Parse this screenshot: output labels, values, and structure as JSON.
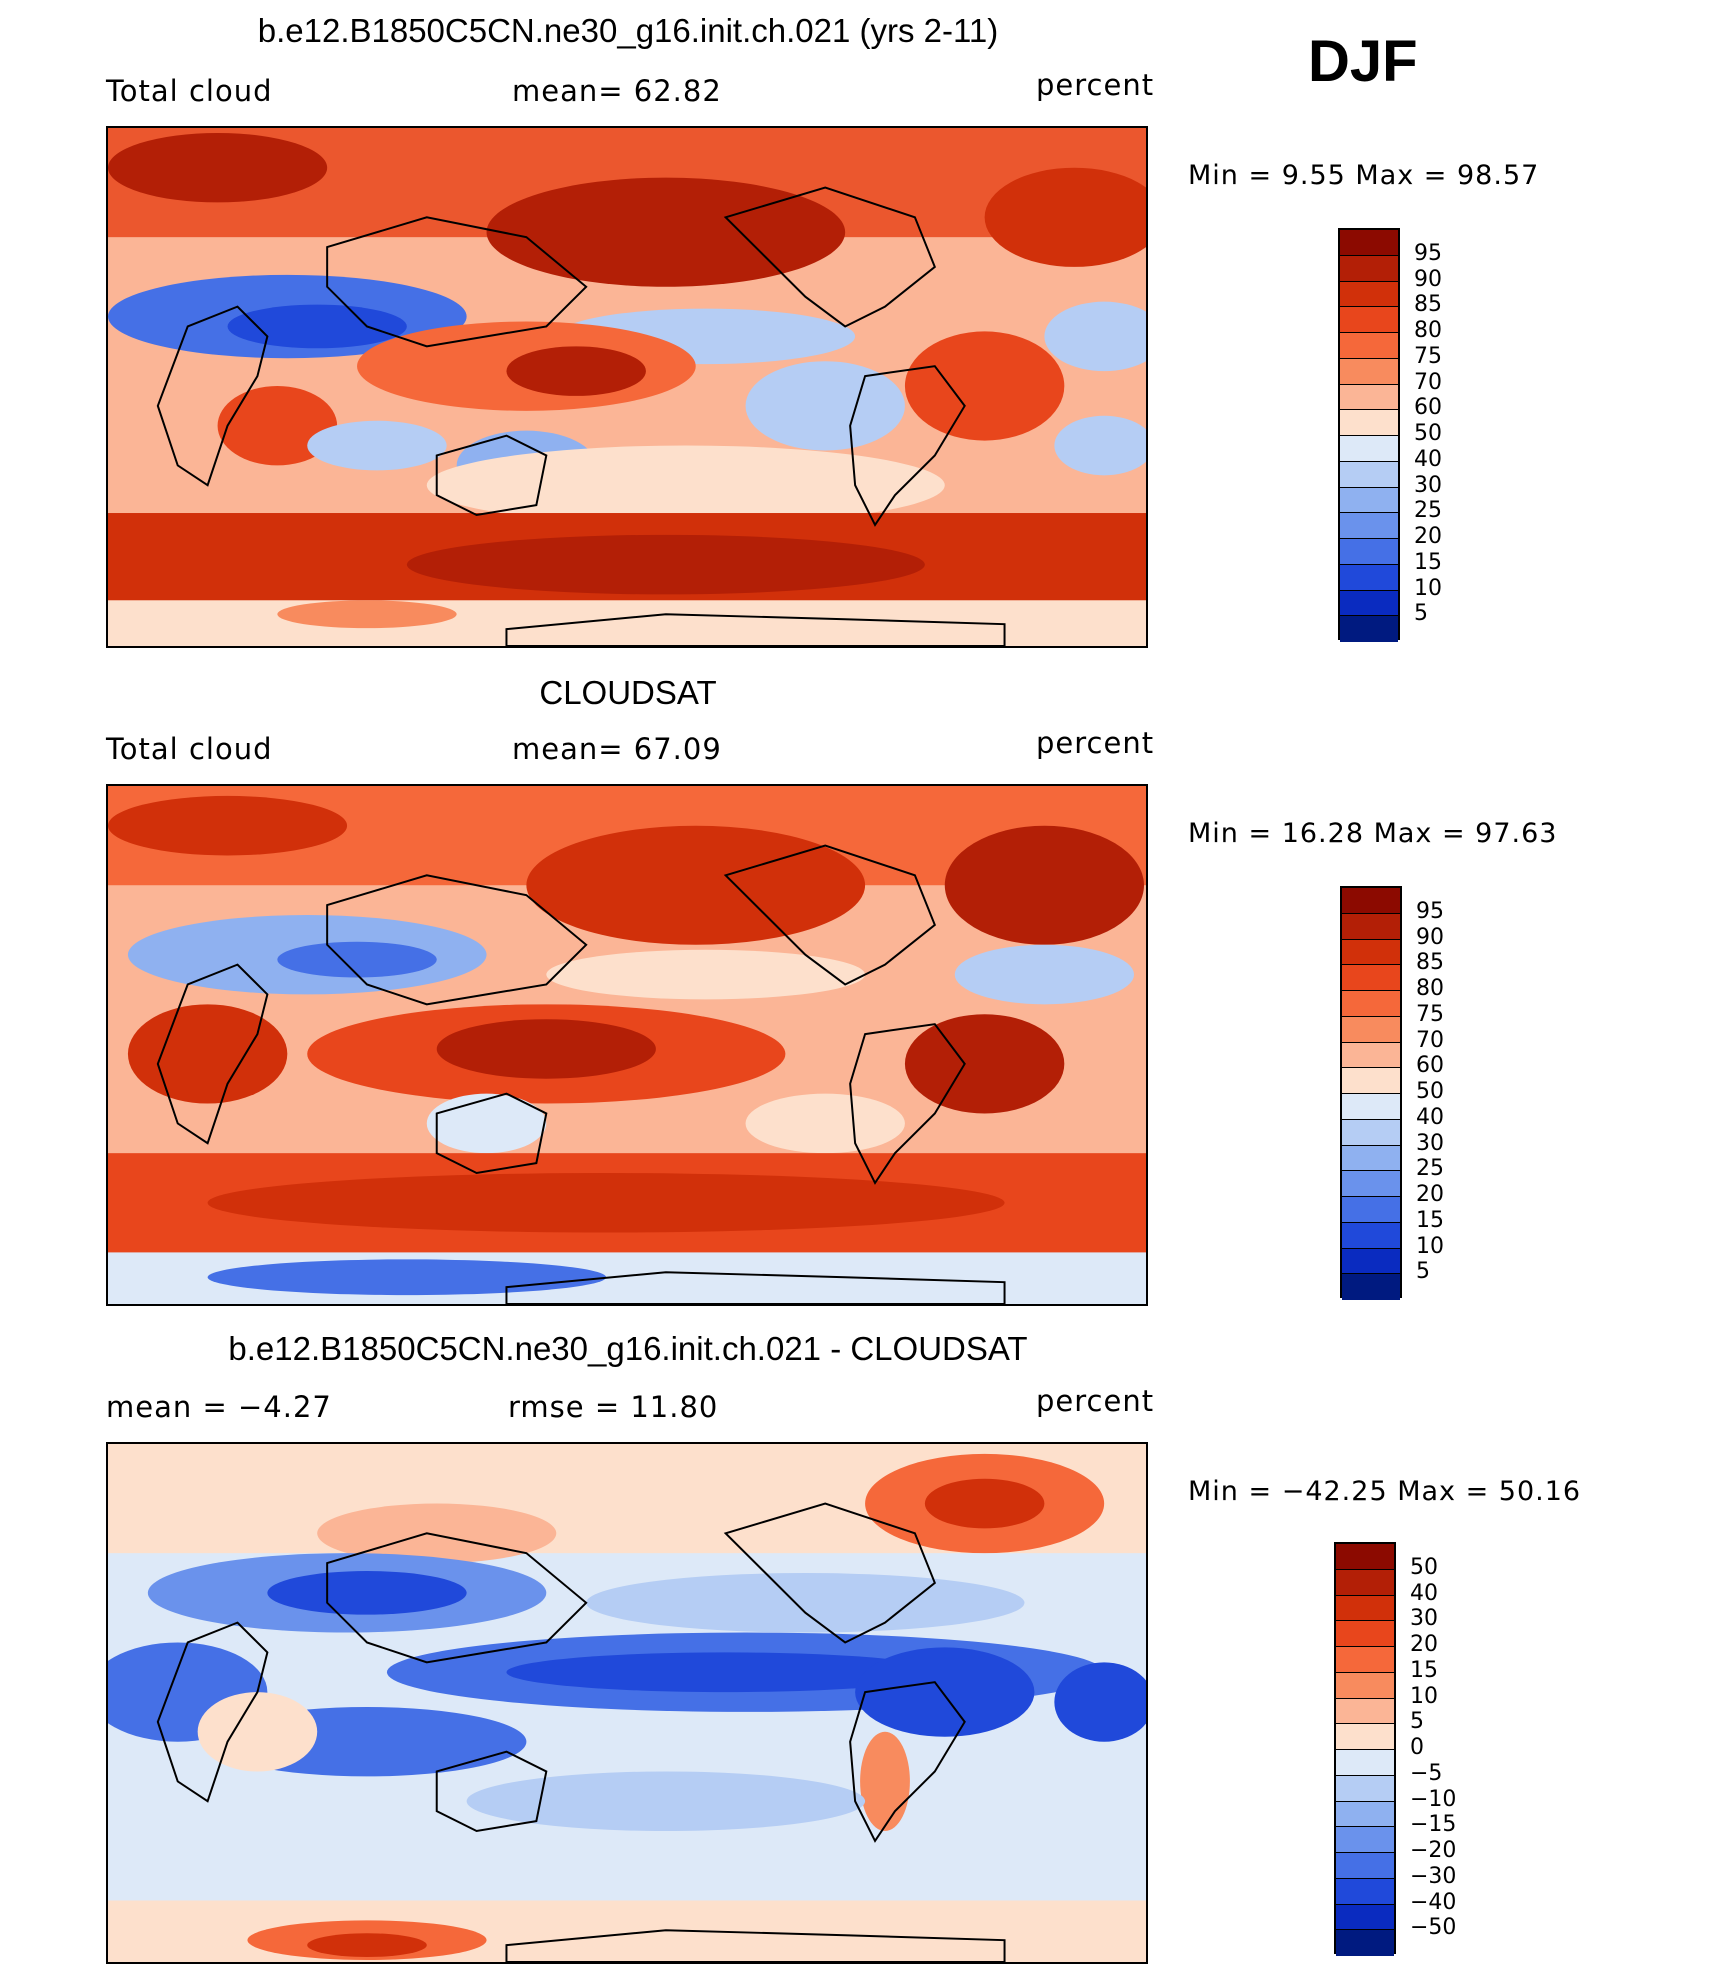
{
  "season": "DJF",
  "units": "percent",
  "panels": [
    {
      "id": "model",
      "title": "b.e12.B1850C5CN.ne30_g16.init.ch.021 (yrs 2-11)",
      "left_label": "Total cloud",
      "mid_label": "mean=   62.82",
      "right_label": "percent",
      "minmax": "Min =    9.55 Max =   98.57",
      "legend_labels": [
        "95",
        "90",
        "85",
        "80",
        "75",
        "70",
        "60",
        "50",
        "40",
        "30",
        "25",
        "20",
        "15",
        "10",
        "5"
      ],
      "legend_colors": [
        "#8c0a00",
        "#b31f06",
        "#d1300a",
        "#e8461c",
        "#f5683a",
        "#f88b5e",
        "#fbb596",
        "#fde0cc",
        "#dde9f8",
        "#b5cdf4",
        "#8fb1f0",
        "#6a92ec",
        "#4570e6",
        "#2049da",
        "#0a2bc0",
        "#001a80"
      ]
    },
    {
      "id": "obs",
      "title": "CLOUDSAT",
      "left_label": "Total cloud",
      "mid_label": "mean=   67.09",
      "right_label": "percent",
      "minmax": "Min =   16.28 Max =   97.63",
      "legend_labels": [
        "95",
        "90",
        "85",
        "80",
        "75",
        "70",
        "60",
        "50",
        "40",
        "30",
        "25",
        "20",
        "15",
        "10",
        "5"
      ],
      "legend_colors": [
        "#8c0a00",
        "#b31f06",
        "#d1300a",
        "#e8461c",
        "#f5683a",
        "#f88b5e",
        "#fbb596",
        "#fde0cc",
        "#dde9f8",
        "#b5cdf4",
        "#8fb1f0",
        "#6a92ec",
        "#4570e6",
        "#2049da",
        "#0a2bc0",
        "#001a80"
      ]
    },
    {
      "id": "diff",
      "title": "b.e12.B1850C5CN.ne30_g16.init.ch.021 - CLOUDSAT",
      "left_label": "mean =   −4.27",
      "mid_label": "rmse =   11.80",
      "right_label": "percent",
      "minmax": "Min = −42.25 Max =   50.16",
      "legend_labels": [
        "50",
        "40",
        "30",
        "20",
        "15",
        "10",
        "5",
        "0",
        "−5",
        "−10",
        "−15",
        "−20",
        "−30",
        "−40",
        "−50"
      ],
      "legend_colors": [
        "#8c0a00",
        "#b31f06",
        "#d1300a",
        "#e8461c",
        "#f5683a",
        "#f88b5e",
        "#fbb596",
        "#fde0cc",
        "#dde9f8",
        "#b5cdf4",
        "#8fb1f0",
        "#6a92ec",
        "#4570e6",
        "#2049da",
        "#0a2bc0",
        "#001a80"
      ]
    }
  ]
}
